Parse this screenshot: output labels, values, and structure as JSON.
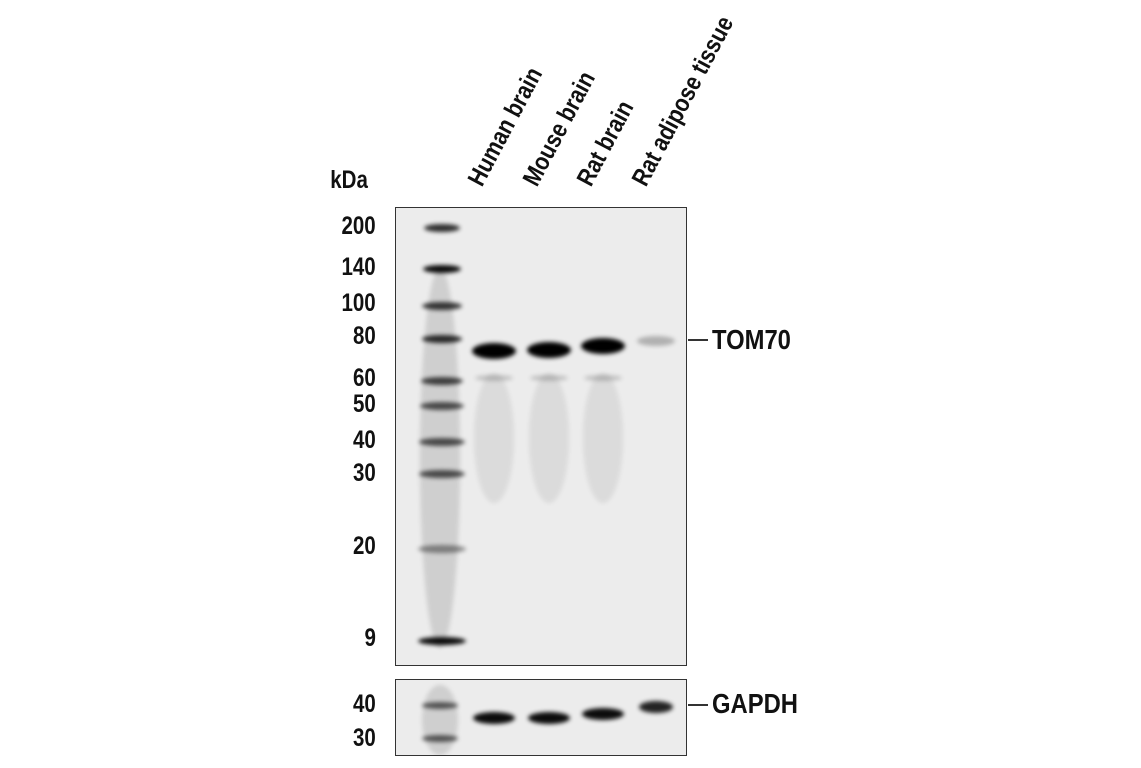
{
  "unit_label": "kDa",
  "lanes": [
    "Human brain",
    "Mouse brain",
    "Rat brain",
    "Rat adipose tissue"
  ],
  "markers_main": [
    "200",
    "140",
    "100",
    "80",
    "60",
    "50",
    "40",
    "30",
    "20",
    "9"
  ],
  "markers_loading": [
    "40",
    "30"
  ],
  "targets": {
    "main": "TOM70",
    "loading": "GAPDH"
  },
  "band_intensity": {
    "TOM70": [
      1.0,
      1.0,
      1.0,
      0.25
    ],
    "GAPDH": [
      0.95,
      0.95,
      0.95,
      0.85
    ]
  }
}
